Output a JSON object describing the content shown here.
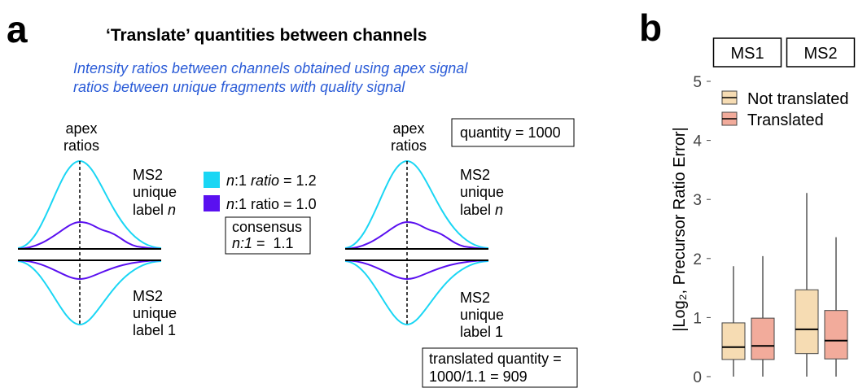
{
  "panel_a": {
    "label": "a",
    "title": "‘Translate’ quantities between channels",
    "subtitle": [
      "Intensity ratios between channels obtained using apex signal",
      "ratios between unique fragments with quality signal"
    ],
    "apex": [
      "apex",
      "ratios"
    ],
    "top_label": [
      "MS2",
      "unique",
      "label",
      "n"
    ],
    "bottom_label": [
      "MS2",
      "unique",
      "label 1"
    ],
    "legend": [
      {
        "parts": [
          "n",
          ":1 ",
          "ratio",
          " = 1.2"
        ]
      },
      {
        "parts": [
          "n",
          ":1 ratio = 1.0"
        ]
      }
    ],
    "consensus": [
      "consensus",
      "n:1",
      " =  1.1"
    ],
    "quantity": "quantity = 1000",
    "translated": [
      "translated quantity =",
      "1000/1.1 = 909"
    ]
  },
  "chart_data": {
    "type": "box",
    "label": "b",
    "ylabel": "|Log₂, Precursor Ratio Error|",
    "facets": [
      "MS1",
      "MS2"
    ],
    "ylim": [
      0,
      5
    ],
    "yticks": [
      0,
      1,
      2,
      3,
      4,
      5
    ],
    "legend": "top-left",
    "series": [
      {
        "name": "Not translated",
        "color": "#f6dcb3",
        "min": [
          0,
          0
        ],
        "q1": [
          0.29,
          0.39
        ],
        "median": [
          0.5,
          0.8
        ],
        "q3": [
          0.91,
          1.47
        ],
        "max": [
          1.87,
          3.11
        ]
      },
      {
        "name": "Translated",
        "color": "#f2ab9b",
        "min": [
          0,
          0
        ],
        "q1": [
          0.29,
          0.3
        ],
        "median": [
          0.52,
          0.61
        ],
        "q3": [
          0.99,
          1.12
        ],
        "max": [
          2.04,
          2.36
        ]
      }
    ]
  }
}
